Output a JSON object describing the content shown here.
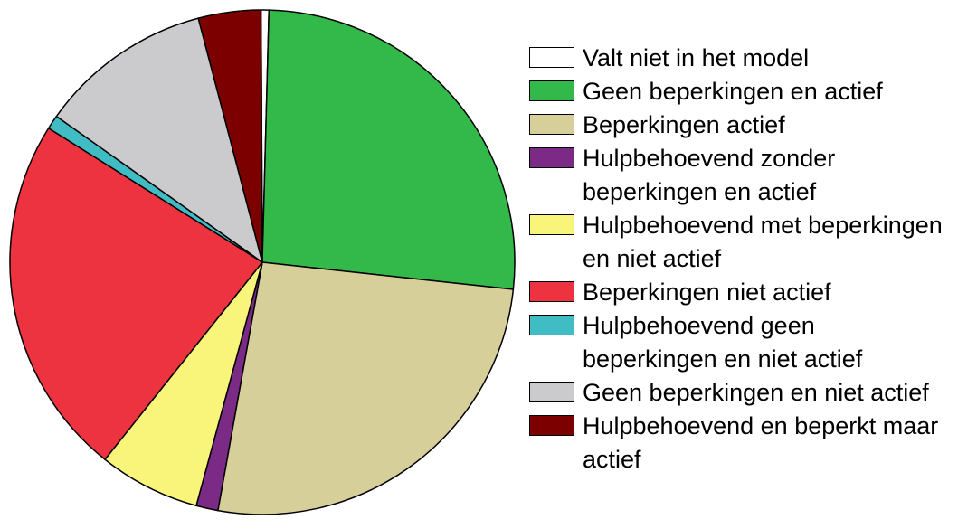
{
  "chart_data": {
    "type": "pie",
    "categories": [
      "Valt niet in het model",
      "Geen beperkingen en actief",
      "Beperkingen actief",
      "Hulpbehoevend zonder beperkingen en actief",
      "Hulpbehoevend met beperkingen en niet actief",
      "Beperkingen niet actief",
      "Hulpbehoevend geen beperkingen en niet actief",
      "Geen beperkingen en niet actief",
      "Hulpbehoevend en beperkt maar actief"
    ],
    "values": [
      0.5,
      26.3,
      26.1,
      1.4,
      6.5,
      23.2,
      0.9,
      11.1,
      4.0
    ],
    "colors": [
      "#ffffff",
      "#33b84a",
      "#d6cf9a",
      "#7b2a86",
      "#f9f57a",
      "#ee3340",
      "#3fbcc4",
      "#cbcbcd",
      "#7d0000"
    ],
    "legend": "right"
  }
}
